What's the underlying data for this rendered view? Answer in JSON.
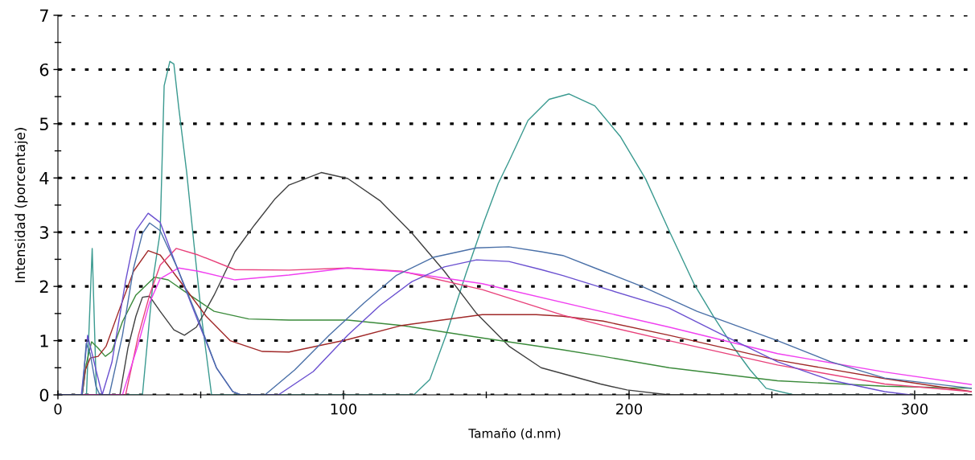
{
  "chart_data": {
    "type": "line",
    "xlabel": "Tamaño (d.nm)",
    "ylabel": "Intensidad (porcentaje)",
    "xlim": [
      0,
      320
    ],
    "ylim": [
      0,
      7
    ],
    "xticks": [
      0,
      100,
      200,
      300
    ],
    "yticks": [
      0,
      1,
      2,
      3,
      4,
      5,
      6,
      7
    ],
    "grid": "y",
    "marker": "none",
    "line_style": "solid",
    "series": [
      {
        "color": "#3a9a90",
        "x": [
          0,
          10,
          12,
          13.5,
          29.6,
          33.5,
          35.8,
          37.2,
          39.2,
          40.6,
          42.3,
          45.1,
          47.6,
          50.5,
          53.8,
          124.6,
          130.2,
          135.9,
          142.9,
          149.1,
          154.2,
          157.9,
          164.6,
          172,
          179,
          188,
          197,
          205.8,
          214,
          222.7,
          229.5,
          236.8,
          242.4,
          248,
          257.7,
          320
        ],
        "values": [
          0,
          0,
          2.7,
          0,
          0,
          2.2,
          3.0,
          5.7,
          6.15,
          6.1,
          5.3,
          4.1,
          2.8,
          1.35,
          0,
          0,
          0.28,
          1.1,
          2.24,
          3.18,
          3.9,
          4.3,
          5.06,
          5.45,
          5.55,
          5.33,
          4.76,
          3.98,
          3.03,
          2.05,
          1.45,
          0.86,
          0.46,
          0.12,
          0,
          0
        ]
      },
      {
        "color": "#404040",
        "x": [
          0,
          21.7,
          24.5,
          27.3,
          29.6,
          32.1,
          35.8,
          40.6,
          44.3,
          48.5,
          54.7,
          62,
          68.8,
          76.1,
          80.9,
          92.2,
          101.5,
          112.8,
          124,
          135.3,
          146.6,
          157.9,
          169.2,
          190,
          199.3,
          214,
          320
        ],
        "values": [
          0,
          0,
          0.86,
          1.45,
          1.8,
          1.82,
          1.54,
          1.2,
          1.1,
          1.25,
          1.84,
          2.64,
          3.13,
          3.62,
          3.87,
          4.1,
          3.99,
          3.58,
          2.98,
          2.28,
          1.5,
          0.9,
          0.5,
          0.2,
          0.09,
          0,
          0
        ]
      },
      {
        "color": "#3a8a3a",
        "x": [
          0,
          8.5,
          9.9,
          11.8,
          14.1,
          16.6,
          18.9,
          22.6,
          27.3,
          33.8,
          38.6,
          46.2,
          54.7,
          66.8,
          80.9,
          101.5,
          120.4,
          148.6,
          176.8,
          190.9,
          214,
          252,
          289.5,
          320
        ],
        "values": [
          0,
          0,
          0.56,
          0.98,
          0.86,
          0.71,
          0.8,
          1.35,
          1.84,
          2.17,
          2.12,
          1.84,
          1.54,
          1.4,
          1.38,
          1.38,
          1.28,
          1.05,
          0.83,
          0.71,
          0.5,
          0.26,
          0.16,
          0.12
        ]
      },
      {
        "color": "#a02828",
        "x": [
          0,
          8.5,
          9.6,
          11.3,
          14.1,
          16.9,
          21.7,
          26.5,
          31.6,
          35.8,
          43.4,
          51.9,
          60.3,
          71.6,
          80.9,
          101.5,
          120.4,
          148.6,
          167.5,
          176.8,
          190.9,
          214,
          252,
          289.5,
          320
        ],
        "values": [
          0,
          0,
          0.46,
          0.68,
          0.71,
          0.9,
          1.6,
          2.28,
          2.66,
          2.58,
          2.05,
          1.45,
          1.0,
          0.8,
          0.79,
          1.02,
          1.28,
          1.48,
          1.48,
          1.45,
          1.36,
          1.1,
          0.64,
          0.3,
          0.06
        ]
      },
      {
        "color": "#e8407a",
        "x": [
          0,
          23.7,
          28.2,
          32.1,
          35.8,
          41.4,
          49.1,
          62,
          80.9,
          101.5,
          120.4,
          148.6,
          176.8,
          190.9,
          214,
          252,
          289.5,
          320
        ],
        "values": [
          0,
          0,
          1.1,
          1.84,
          2.39,
          2.7,
          2.58,
          2.31,
          2.3,
          2.34,
          2.28,
          1.94,
          1.47,
          1.28,
          1.0,
          0.55,
          0.2,
          0.06
        ]
      },
      {
        "color": "#f040f0",
        "x": [
          0,
          22.6,
          28.2,
          32.1,
          35.8,
          42.3,
          49.1,
          62,
          80.9,
          101.5,
          120.4,
          148.6,
          190.9,
          214,
          252,
          289.5,
          320
        ],
        "values": [
          0,
          0,
          0.95,
          1.7,
          2.14,
          2.34,
          2.28,
          2.12,
          2.21,
          2.34,
          2.27,
          2.05,
          1.53,
          1.25,
          0.76,
          0.42,
          0.19
        ]
      },
      {
        "color": "#6a50d0",
        "x": [
          0,
          8.2,
          10.4,
          13.8,
          15.5,
          18.9,
          23.7,
          27.3,
          31.6,
          35.8,
          41.4,
          49.1,
          55.5,
          61.2,
          64,
          77.2,
          89.4,
          101.5,
          112.8,
          124,
          135.3,
          146.6,
          157.9,
          169.2,
          176.8,
          190.9,
          214,
          233,
          252,
          270.6,
          289.5,
          298.8
        ],
        "values": [
          0,
          0,
          1.1,
          0.36,
          0,
          0.6,
          2.1,
          3.03,
          3.35,
          3.18,
          2.39,
          1.35,
          0.5,
          0.06,
          0,
          0,
          0.43,
          1.1,
          1.65,
          2.09,
          2.36,
          2.49,
          2.46,
          2.31,
          2.2,
          1.97,
          1.6,
          1.1,
          0.61,
          0.27,
          0.06,
          0
        ]
      },
      {
        "color": "#4a70a8",
        "x": [
          0,
          8.5,
          9.9,
          11.3,
          13.3,
          14.7,
          18,
          22.6,
          26.5,
          29.6,
          32.1,
          35.8,
          41.4,
          49.1,
          55.5,
          61.2,
          64,
          72.5,
          82.9,
          95,
          107.1,
          118.4,
          131.7,
          146.6,
          157.9,
          169.2,
          176.8,
          190.9,
          205,
          223.8,
          252,
          270.6,
          289.5,
          320
        ],
        "values": [
          0,
          0,
          0.95,
          0.76,
          0.16,
          0,
          0,
          1.1,
          2.34,
          2.98,
          3.17,
          3.03,
          2.39,
          1.4,
          0.5,
          0.06,
          0,
          0,
          0.46,
          1.1,
          1.69,
          2.2,
          2.54,
          2.71,
          2.73,
          2.64,
          2.57,
          2.28,
          1.99,
          1.54,
          1.0,
          0.61,
          0.31,
          0.12
        ]
      }
    ]
  }
}
